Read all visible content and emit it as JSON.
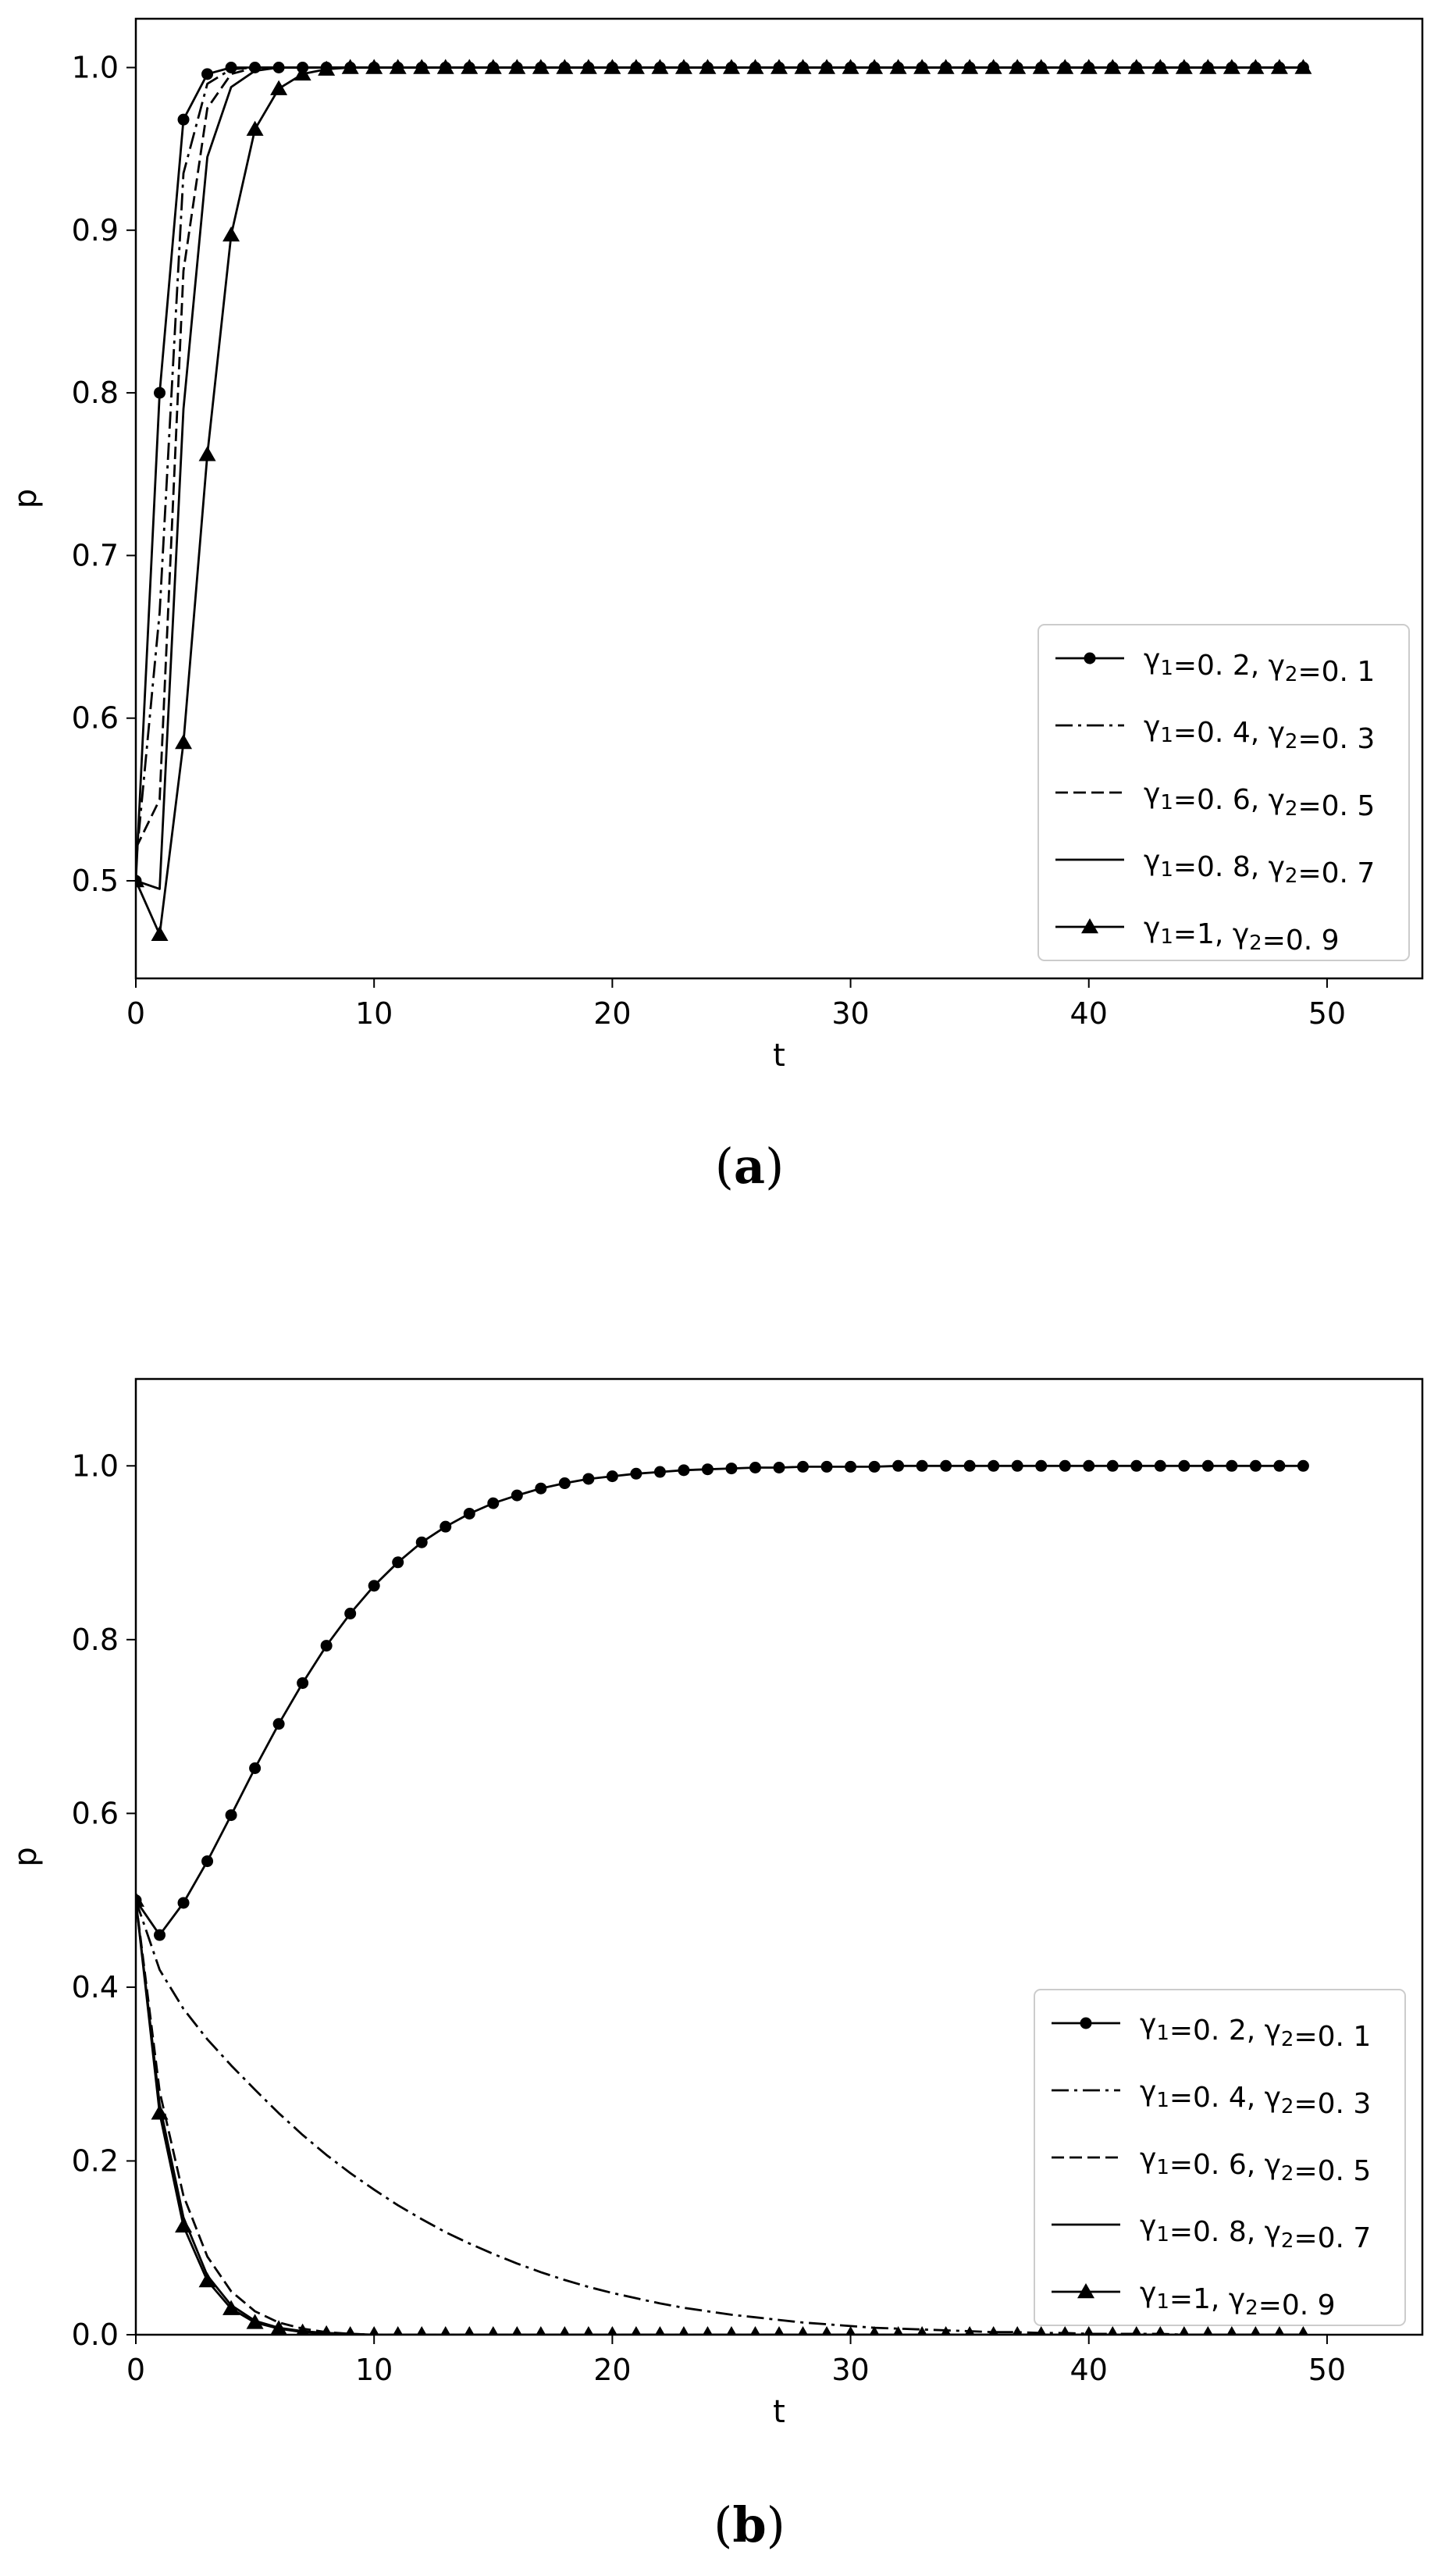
{
  "chart_data": [
    {
      "panel": "a",
      "panel_label": "(a)",
      "type": "line",
      "xlabel": "t",
      "ylabel": "p",
      "xlim": [
        0,
        54
      ],
      "ylim": [
        0.44,
        1.03
      ],
      "xticks": [
        0,
        10,
        20,
        30,
        40,
        50
      ],
      "yticks": [
        0.5,
        0.6,
        0.7,
        0.8,
        0.9,
        1.0
      ],
      "grid": false,
      "legend_position": "lower right",
      "x": {
        "start": 0,
        "end": 49,
        "step": 1
      },
      "series": [
        {
          "name": "γ1=0. 2, γ2=0. 1",
          "style": "solid",
          "marker": "dot",
          "values": [
            0.5,
            0.8,
            0.968,
            0.996,
            1.0,
            1.0
          ]
        },
        {
          "name": "γ1=0. 4, γ2=0. 3",
          "style": "dashdot",
          "marker": "none",
          "values": [
            0.51,
            0.665,
            0.935,
            0.99,
            0.999,
            1.0
          ]
        },
        {
          "name": "γ1=0. 6, γ2=0. 5",
          "style": "dashed",
          "marker": "none",
          "values": [
            0.52,
            0.55,
            0.875,
            0.975,
            0.996,
            1.0
          ]
        },
        {
          "name": "γ1=0. 8, γ2=0. 7",
          "style": "solid",
          "marker": "none",
          "values": [
            0.5,
            0.495,
            0.79,
            0.945,
            0.988,
            0.998,
            1.0
          ]
        },
        {
          "name": "γ1=1, γ2=0. 9",
          "style": "solid",
          "marker": "triangle",
          "values": [
            0.5,
            0.467,
            0.585,
            0.762,
            0.897,
            0.962,
            0.987,
            0.996,
            0.999,
            1.0
          ]
        }
      ]
    },
    {
      "panel": "b",
      "panel_label": "(b)",
      "type": "line",
      "xlabel": "t",
      "ylabel": "p",
      "xlim": [
        0,
        54
      ],
      "ylim": [
        0.0,
        1.1
      ],
      "xticks": [
        0,
        10,
        20,
        30,
        40,
        50
      ],
      "yticks": [
        0.0,
        0.2,
        0.4,
        0.6,
        0.8,
        1.0
      ],
      "grid": false,
      "legend_position": "lower right",
      "x": {
        "start": 0,
        "end": 49,
        "step": 1
      },
      "series": [
        {
          "name": "γ1=0. 2, γ2=0. 1",
          "style": "solid",
          "marker": "dot",
          "values": [
            0.5,
            0.46,
            0.497,
            0.545,
            0.598,
            0.652,
            0.703,
            0.75,
            0.793,
            0.83,
            0.862,
            0.889,
            0.912,
            0.93,
            0.945,
            0.957,
            0.966,
            0.974,
            0.98,
            0.985,
            0.988,
            0.991,
            0.993,
            0.995,
            0.996,
            0.997,
            0.998,
            0.998,
            0.999,
            0.999,
            0.999,
            0.999,
            1.0
          ]
        },
        {
          "name": "γ1=0. 4, γ2=0. 3",
          "style": "dashdot",
          "marker": "none",
          "values": [
            0.5,
            0.42,
            0.375,
            0.34,
            0.31,
            0.282,
            0.255,
            0.23,
            0.207,
            0.186,
            0.167,
            0.149,
            0.133,
            0.118,
            0.105,
            0.093,
            0.082,
            0.072,
            0.063,
            0.055,
            0.048,
            0.042,
            0.036,
            0.031,
            0.027,
            0.023,
            0.02,
            0.017,
            0.014,
            0.012,
            0.01,
            0.008,
            0.007,
            0.006,
            0.005,
            0.004,
            0.003,
            0.003,
            0.002,
            0.002,
            0.001,
            0.001,
            0.001,
            0.001,
            0.0
          ]
        },
        {
          "name": "γ1=0. 6, γ2=0. 5",
          "style": "dashed",
          "marker": "none",
          "values": [
            0.5,
            0.28,
            0.16,
            0.09,
            0.05,
            0.027,
            0.014,
            0.007,
            0.003,
            0.001,
            0.0
          ]
        },
        {
          "name": "γ1=0. 8, γ2=0. 7",
          "style": "solid",
          "marker": "none",
          "values": [
            0.5,
            0.265,
            0.135,
            0.068,
            0.034,
            0.016,
            0.008,
            0.004,
            0.002,
            0.001,
            0.0
          ]
        },
        {
          "name": "γ1=1, γ2=0. 9",
          "style": "solid",
          "marker": "triangle",
          "values": [
            0.5,
            0.255,
            0.125,
            0.062,
            0.03,
            0.014,
            0.007,
            0.003,
            0.001,
            0.0
          ]
        }
      ]
    }
  ]
}
